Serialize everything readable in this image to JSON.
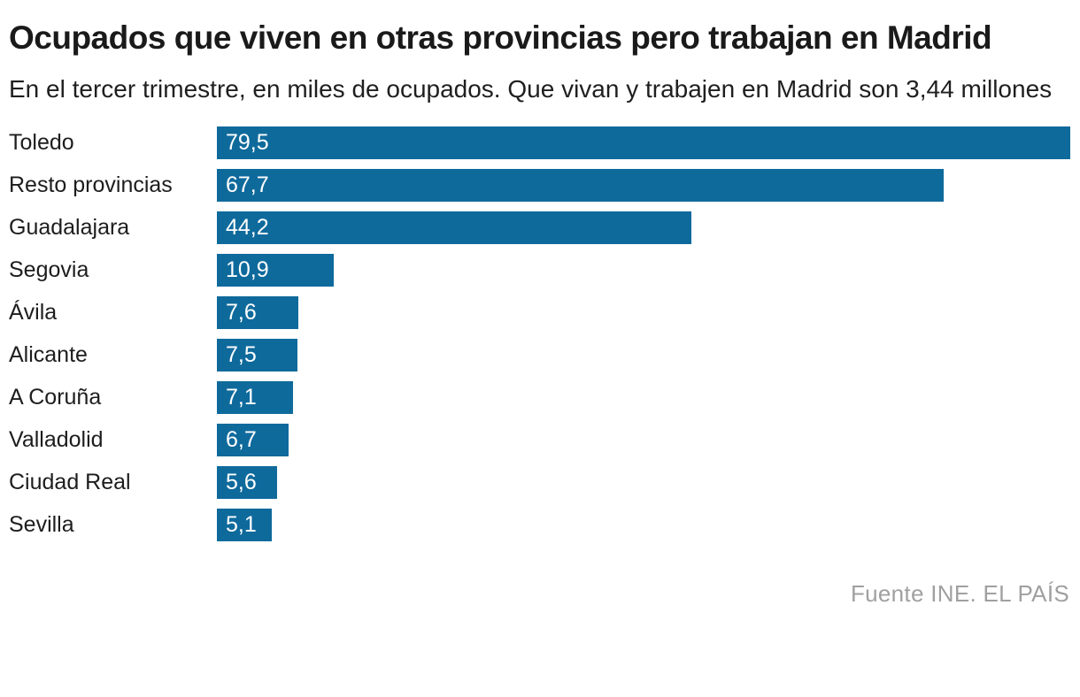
{
  "header": {
    "title": "Ocupados que viven en otras provincias pero trabajan en Madrid",
    "subtitle": "En el tercer trimestre, en miles de ocupados. Que vivan y trabajen en Madrid son 3,44 millones"
  },
  "chart_data": {
    "type": "bar",
    "orientation": "horizontal",
    "title": "Ocupados que viven en otras provincias pero trabajan en Madrid",
    "subtitle": "En el tercer trimestre, en miles de ocupados. Que vivan y trabajen en Madrid son 3,44 millones",
    "categories": [
      "Toledo",
      "Resto provincias",
      "Guadalajara",
      "Segovia",
      "Ávila",
      "Alicante",
      "A Coruña",
      "Valladolid",
      "Ciudad Real",
      "Sevilla"
    ],
    "values": [
      79.5,
      67.7,
      44.2,
      10.9,
      7.6,
      7.5,
      7.1,
      6.7,
      5.6,
      5.1
    ],
    "value_labels": [
      "79,5",
      "67,7",
      "44,2",
      "10,9",
      "7,6",
      "7,5",
      "7,1",
      "6,7",
      "5,6",
      "5,1"
    ],
    "xlabel": "",
    "ylabel": "",
    "xlim": [
      0,
      79.5
    ],
    "grid": false,
    "legend": null,
    "value_label_position": "inside-start",
    "bar_color": "#0f6a9c",
    "value_label_color": "#ffffff"
  },
  "footer": {
    "source": "Fuente INE. EL PAÍS",
    "source_color": "#a0a0a0"
  }
}
